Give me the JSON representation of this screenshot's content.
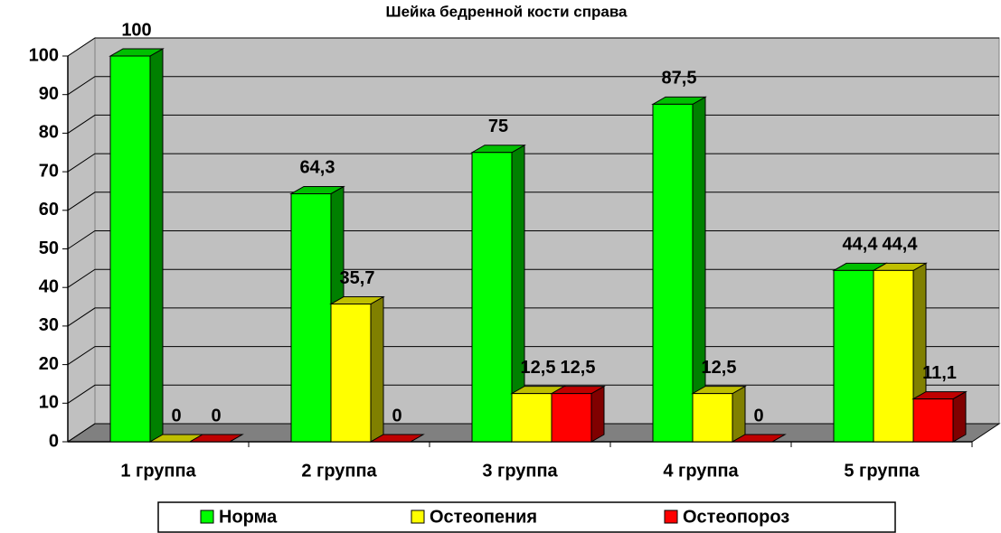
{
  "chart_data": {
    "type": "bar3d",
    "title": "Шейка бедренной кости справа",
    "categories": [
      "1 группа",
      "2 группа",
      "3 группа",
      "4 группа",
      "5 группа"
    ],
    "series": [
      {
        "name": "Норма",
        "color": "#00ff00",
        "values": [
          100,
          64.3,
          75,
          87.5,
          44.4
        ],
        "value_labels": [
          "100",
          "64,3",
          "75",
          "87,5",
          "44,4"
        ]
      },
      {
        "name": "Остеопения",
        "color": "#ffff00",
        "values": [
          0,
          35.7,
          12.5,
          12.5,
          44.4
        ],
        "value_labels": [
          "0",
          "35,7",
          "12,5",
          "12,5",
          "44,4"
        ]
      },
      {
        "name": "Остеопороз",
        "color": "#ff0000",
        "values": [
          0,
          0,
          12.5,
          0,
          11.1
        ],
        "value_labels": [
          "0",
          "0",
          "12,5",
          "0",
          "11,1"
        ]
      }
    ],
    "ylim": [
      0,
      100
    ],
    "yticks": [
      0,
      10,
      20,
      30,
      40,
      50,
      60,
      70,
      80,
      90,
      100
    ],
    "grid": true
  }
}
